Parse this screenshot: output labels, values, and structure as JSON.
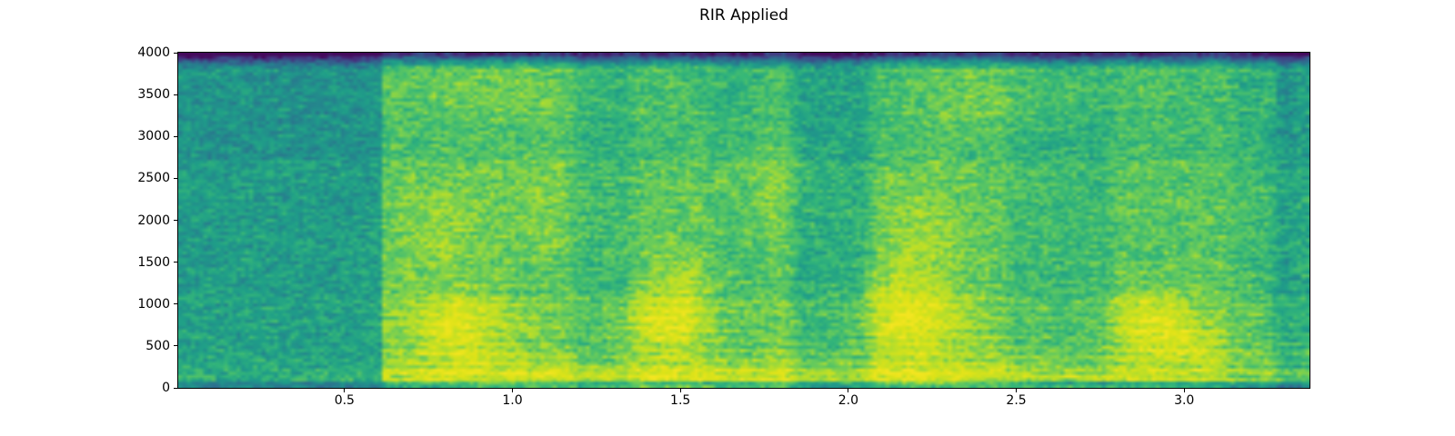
{
  "figure": {
    "background_color": "#ffffff",
    "text_color": "#000000",
    "spine_color": "#000000"
  },
  "chart_data": {
    "type": "heatmap",
    "subtype": "spectrogram",
    "title": "RIR Applied",
    "xlabel": "",
    "ylabel": "",
    "x_range": [
      0.005,
      3.373
    ],
    "y_range": [
      0,
      4000
    ],
    "x_ticks": [
      0.5,
      1.0,
      1.5,
      2.0,
      2.5,
      3.0
    ],
    "x_tick_labels": [
      "0.5",
      "1.0",
      "1.5",
      "2.0",
      "2.5",
      "3.0"
    ],
    "y_ticks": [
      0,
      500,
      1000,
      1500,
      2000,
      2500,
      3000,
      3500,
      4000
    ],
    "y_tick_labels": [
      "0",
      "500",
      "1000",
      "1500",
      "2000",
      "2500",
      "3000",
      "3500",
      "4000"
    ],
    "grid": false,
    "legend": null,
    "colormap": "viridis",
    "colormap_stops": [
      [
        0.0,
        68,
        1,
        84
      ],
      [
        0.1,
        72,
        40,
        120
      ],
      [
        0.2,
        62,
        73,
        137
      ],
      [
        0.3,
        49,
        104,
        142
      ],
      [
        0.4,
        38,
        130,
        142
      ],
      [
        0.5,
        31,
        158,
        137
      ],
      [
        0.6,
        53,
        183,
        121
      ],
      [
        0.7,
        109,
        205,
        89
      ],
      [
        0.8,
        180,
        222,
        44
      ],
      [
        0.9,
        223,
        227,
        24
      ],
      [
        1.0,
        253,
        231,
        37
      ]
    ],
    "spectrogram": {
      "time_bins": 272,
      "freq_bins": 103,
      "seed": 7,
      "onset_time": 0.61,
      "pre_onset_level": 0.5,
      "post_onset_level": 0.67,
      "top_rolloff": {
        "start": 3760,
        "amount": 0.62
      },
      "freq_bands": [
        {
          "f0": 0,
          "f1": 60,
          "amount": -0.1
        },
        {
          "f0": 80,
          "f1": 230,
          "amount": 0.12
        },
        {
          "f0": 230,
          "f1": 480,
          "amount": 0.07
        },
        {
          "f0": 480,
          "f1": 1100,
          "amount": 0.04
        },
        {
          "f0": 2700,
          "f1": 3750,
          "amount": -0.04
        }
      ],
      "dips": [
        {
          "t0": 1.2,
          "t1": 1.33,
          "amount": 0.06
        },
        {
          "t0": 1.6,
          "t1": 1.72,
          "amount": 0.04
        },
        {
          "t0": 1.86,
          "t1": 2.04,
          "amount": 0.11
        },
        {
          "t0": 2.5,
          "t1": 2.6,
          "amount": 0.05
        },
        {
          "t0": 2.64,
          "t1": 2.76,
          "amount": 0.06
        },
        {
          "t0": 3.16,
          "t1": 3.3,
          "amount": 0.05
        },
        {
          "t0": 3.3,
          "t1": 3.4,
          "amount": 0.12
        }
      ],
      "blobs": [
        {
          "t": 0.84,
          "f": 700,
          "st": 0.1,
          "sf": 300,
          "amp": 0.2
        },
        {
          "t": 0.78,
          "f": 1900,
          "st": 0.09,
          "sf": 450,
          "amp": 0.09
        },
        {
          "t": 0.95,
          "f": 3500,
          "st": 0.22,
          "sf": 260,
          "amp": 0.08
        },
        {
          "t": 1.1,
          "f": 2200,
          "st": 0.1,
          "sf": 500,
          "amp": 0.06
        },
        {
          "t": 1.47,
          "f": 780,
          "st": 0.09,
          "sf": 240,
          "amp": 0.2
        },
        {
          "t": 1.5,
          "f": 1300,
          "st": 0.08,
          "sf": 280,
          "amp": 0.09
        },
        {
          "t": 1.75,
          "f": 2500,
          "st": 0.12,
          "sf": 500,
          "amp": 0.06
        },
        {
          "t": 2.18,
          "f": 850,
          "st": 0.11,
          "sf": 380,
          "amp": 0.21
        },
        {
          "t": 2.22,
          "f": 1900,
          "st": 0.09,
          "sf": 450,
          "amp": 0.09
        },
        {
          "t": 2.35,
          "f": 3400,
          "st": 0.13,
          "sf": 280,
          "amp": 0.07
        },
        {
          "t": 2.62,
          "f": 3500,
          "st": 0.15,
          "sf": 250,
          "amp": 0.05
        },
        {
          "t": 2.9,
          "f": 780,
          "st": 0.09,
          "sf": 260,
          "amp": 0.19
        },
        {
          "t": 3.03,
          "f": 500,
          "st": 0.09,
          "sf": 200,
          "amp": 0.1
        },
        {
          "t": 1.3,
          "f": 150,
          "st": 0.5,
          "sf": 120,
          "amp": 0.08
        },
        {
          "t": 2.2,
          "f": 150,
          "st": 0.5,
          "sf": 120,
          "amp": 0.08
        }
      ],
      "stripes": {
        "period": 115,
        "amp": 0.05,
        "max_f": 1900,
        "phase_rate": 5
      },
      "noise": {
        "cell": 0.14,
        "streak": 0.1
      }
    }
  }
}
